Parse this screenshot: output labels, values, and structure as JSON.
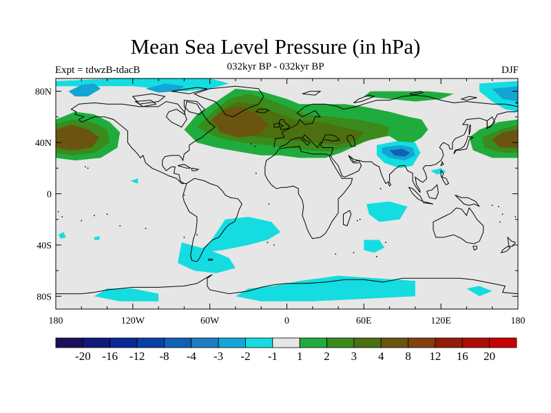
{
  "header": {
    "title": "Mean Sea Level Pressure (in hPa)",
    "subtitle": "032kyr BP - 032kyr BP",
    "left_label": "Expt = tdwzB-tdacB",
    "right_label": "DJF"
  },
  "chart_data": {
    "type": "heatmap",
    "title": "Mean Sea Level Pressure (in hPa)",
    "subtitle": "032kyr BP - 032kyr BP",
    "season": "DJF",
    "experiment": "Expt = tdwzB-tdacB",
    "xlim": [
      -180,
      180
    ],
    "ylim": [
      -90,
      90
    ],
    "x_ticks": [
      {
        "value": -180,
        "label": "180"
      },
      {
        "value": -120,
        "label": "120W"
      },
      {
        "value": -60,
        "label": "60W"
      },
      {
        "value": 0,
        "label": "0"
      },
      {
        "value": 60,
        "label": "60E"
      },
      {
        "value": 120,
        "label": "120E"
      },
      {
        "value": 180,
        "label": "180"
      }
    ],
    "y_ticks": [
      {
        "value": 80,
        "label": "80N"
      },
      {
        "value": 40,
        "label": "40N"
      },
      {
        "value": 0,
        "label": "0"
      },
      {
        "value": -40,
        "label": "40S"
      },
      {
        "value": -80,
        "label": "80S"
      }
    ],
    "colorbar": {
      "colors": [
        "#1a0f5c",
        "#101a7a",
        "#0a2a94",
        "#0840a8",
        "#1060b4",
        "#1e7dc2",
        "#14a4d6",
        "#14dce0",
        "#e6e6e6",
        "#20ac3c",
        "#3a8a1c",
        "#4c7010",
        "#6a5410",
        "#82400e",
        "#941c06",
        "#b00c04",
        "#c80000"
      ],
      "labels": [
        "-20",
        "-16",
        "-12",
        "-8",
        "-4",
        "-3",
        "-2",
        "-1",
        "1",
        "2",
        "3",
        "4",
        "8",
        "12",
        "16",
        "20"
      ]
    },
    "background_color": "#e6e6e6",
    "regions": [
      {
        "name": "north-atlantic-positive",
        "level": 4,
        "lon": -35,
        "lat": 45
      },
      {
        "name": "north-pacific-positive-west",
        "level": 4,
        "lon": -160,
        "lat": 43
      },
      {
        "name": "north-pacific-positive-east",
        "level": 4,
        "lon": 170,
        "lat": 43
      },
      {
        "name": "eurasia-positive",
        "level": 3,
        "lon": 40,
        "lat": 45
      },
      {
        "name": "tibet-negative",
        "level": -3,
        "lon": 90,
        "lat": 33
      },
      {
        "name": "arctic-canada-negative",
        "level": -2,
        "lon": -90,
        "lat": 80
      },
      {
        "name": "chukchi-negative",
        "level": -2,
        "lon": 165,
        "lat": 78
      },
      {
        "name": "south-atlantic-negative",
        "level": -1,
        "lon": -25,
        "lat": -30
      },
      {
        "name": "southern-ocean-negative",
        "level": -1,
        "lon": -45,
        "lat": -55
      },
      {
        "name": "antarctic-coast-negative",
        "level": -1,
        "lon": 30,
        "lat": -80
      },
      {
        "name": "indian-ocean-negative",
        "level": -1,
        "lon": 80,
        "lat": -15
      }
    ]
  }
}
